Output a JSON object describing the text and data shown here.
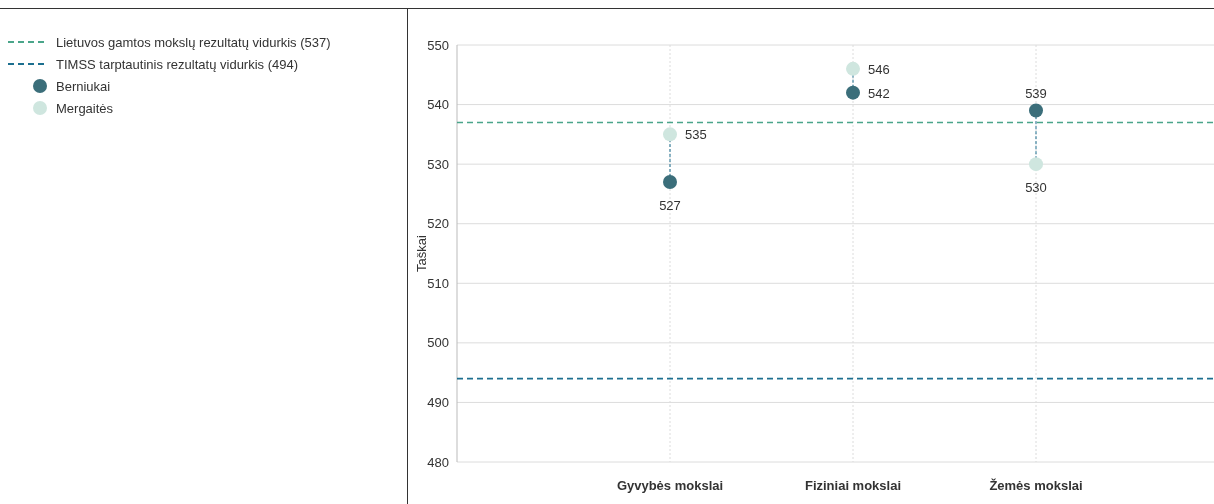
{
  "chart_data": {
    "type": "scatter",
    "ylabel": "Taškai",
    "categories": [
      "Gyvybės mokslai",
      "Fiziniai mokslai",
      "Žemės mokslai"
    ],
    "series": [
      {
        "name": "Berniukai",
        "color": "#3b6e7a",
        "values": [
          527,
          542,
          539
        ]
      },
      {
        "name": "Mergaitės",
        "color": "#cfe6df",
        "values": [
          535,
          546,
          530
        ]
      }
    ],
    "ylim": [
      480,
      550
    ],
    "yticks": [
      480,
      490,
      500,
      510,
      520,
      530,
      540,
      550
    ],
    "ref_lines": [
      {
        "axis": "y",
        "value": 537,
        "label": "Lietuvos gamtos mokslų rezultatų vidurkis (537)",
        "color": "#4aa58a",
        "line_style": "dashed"
      },
      {
        "axis": "y",
        "value": 494,
        "label": "TIMSS tarptautinis rezultatų vidurkis (494)",
        "color": "#1c6f8f",
        "line_style": "dashed"
      }
    ],
    "grid": true,
    "legend": "top left",
    "marker": "circle",
    "data_labels": true
  }
}
